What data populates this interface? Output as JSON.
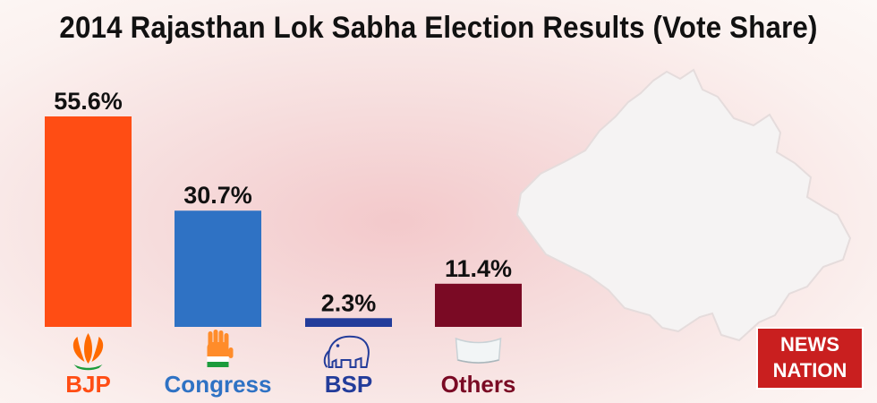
{
  "chart_data": {
    "type": "bar",
    "title": "2014 Rajasthan Lok Sabha Election Results (Vote Share)",
    "categories": [
      "BJP",
      "Congress",
      "BSP",
      "Others"
    ],
    "values": [
      55.6,
      30.7,
      2.3,
      11.4
    ],
    "value_labels": [
      "55.6%",
      "30.7%",
      "2.3%",
      "11.4%"
    ],
    "colors": [
      "#ff4d14",
      "#2f72c4",
      "#233c9a",
      "#7a0a24"
    ],
    "label_colors": [
      "#ff4d14",
      "#2f72c4",
      "#233c9a",
      "#7a0a24"
    ],
    "icons": [
      "lotus-icon",
      "hand-icon",
      "elephant-icon",
      "cap-icon"
    ],
    "unit": "%",
    "ylim": [
      0,
      55.6
    ],
    "grid": false,
    "legend": "none"
  },
  "logo": {
    "line1": "NEWS",
    "line2": "NATION"
  }
}
